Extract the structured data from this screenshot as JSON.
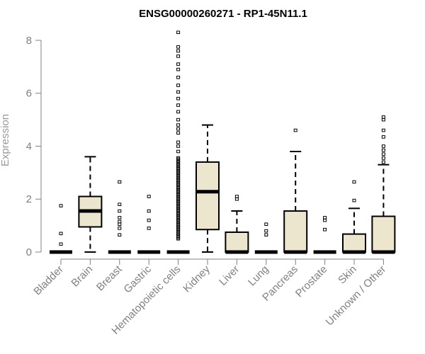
{
  "chart_data": {
    "type": "box",
    "title": "ENSG00000260271 - RP1-45N11.1",
    "xlabel": "",
    "ylabel": "Expression",
    "ylim": [
      0,
      8.4
    ],
    "yticks": [
      0,
      2,
      4,
      6,
      8
    ],
    "categories": [
      "Bladder",
      "Brain",
      "Breast",
      "Gastric",
      "Hematopoietic cells",
      "Kidney",
      "Liver",
      "Lung",
      "Pancreas",
      "Prostate",
      "Skin",
      "Unknown / Other"
    ],
    "boxes": [
      {
        "category": "Bladder",
        "whisker_low": 0,
        "q1": 0,
        "median": 0,
        "q3": 0,
        "whisker_high": 0,
        "outliers": [
          0.3,
          0.7,
          1.75
        ]
      },
      {
        "category": "Brain",
        "whisker_low": 0,
        "q1": 0.95,
        "median": 1.55,
        "q3": 2.1,
        "whisker_high": 3.6,
        "outliers": []
      },
      {
        "category": "Breast",
        "whisker_low": 0,
        "q1": 0,
        "median": 0,
        "q3": 0,
        "whisker_high": 0,
        "outliers": [
          0.65,
          0.9,
          1.05,
          1.15,
          1.3,
          1.55,
          1.8,
          2.65
        ]
      },
      {
        "category": "Gastric",
        "whisker_low": 0,
        "q1": 0,
        "median": 0,
        "q3": 0,
        "whisker_high": 0,
        "outliers": [
          0.9,
          1.2,
          1.55,
          2.1
        ]
      },
      {
        "category": "Hematopoietic cells",
        "whisker_low": 0,
        "q1": 0,
        "median": 0,
        "q3": 0,
        "whisker_high": 0,
        "outliers_dense_range": [
          0.5,
          3.6
        ],
        "outliers": [
          3.8,
          4.0,
          4.15,
          4.5,
          4.65,
          4.8,
          5.0,
          5.3,
          5.55,
          5.8,
          6.05,
          6.3,
          6.6,
          6.9,
          7.1,
          7.4,
          7.6,
          7.75,
          8.3
        ]
      },
      {
        "category": "Kidney",
        "whisker_low": 0,
        "q1": 0.85,
        "median": 2.28,
        "q3": 3.4,
        "whisker_high": 4.8,
        "outliers": []
      },
      {
        "category": "Liver",
        "whisker_low": 0,
        "q1": 0,
        "median": 0,
        "q3": 0.75,
        "whisker_high": 1.55,
        "outliers": [
          2.0,
          2.1
        ]
      },
      {
        "category": "Lung",
        "whisker_low": 0,
        "q1": 0,
        "median": 0,
        "q3": 0,
        "whisker_high": 0,
        "outliers": [
          0.65,
          0.8,
          1.05
        ]
      },
      {
        "category": "Pancreas",
        "whisker_low": 0,
        "q1": 0,
        "median": 0,
        "q3": 1.55,
        "whisker_high": 3.8,
        "outliers": [
          4.6
        ]
      },
      {
        "category": "Prostate",
        "whisker_low": 0,
        "q1": 0,
        "median": 0,
        "q3": 0,
        "whisker_high": 0,
        "outliers": [
          0.85,
          1.2,
          1.3
        ]
      },
      {
        "category": "Skin",
        "whisker_low": 0,
        "q1": 0,
        "median": 0,
        "q3": 0.68,
        "whisker_high": 1.65,
        "outliers": [
          1.95,
          2.65
        ]
      },
      {
        "category": "Unknown / Other",
        "whisker_low": 0,
        "q1": 0,
        "median": 0,
        "q3": 1.35,
        "whisker_high": 3.3,
        "outliers": [
          3.4,
          3.55,
          3.7,
          3.85,
          4.0,
          4.35,
          4.6,
          5.0,
          5.1
        ]
      }
    ],
    "colors": {
      "box_fill": "#ede6cf",
      "box_stroke": "#000000",
      "axis": "#808080",
      "title": "#000000"
    },
    "grid": false,
    "legend": "none"
  }
}
